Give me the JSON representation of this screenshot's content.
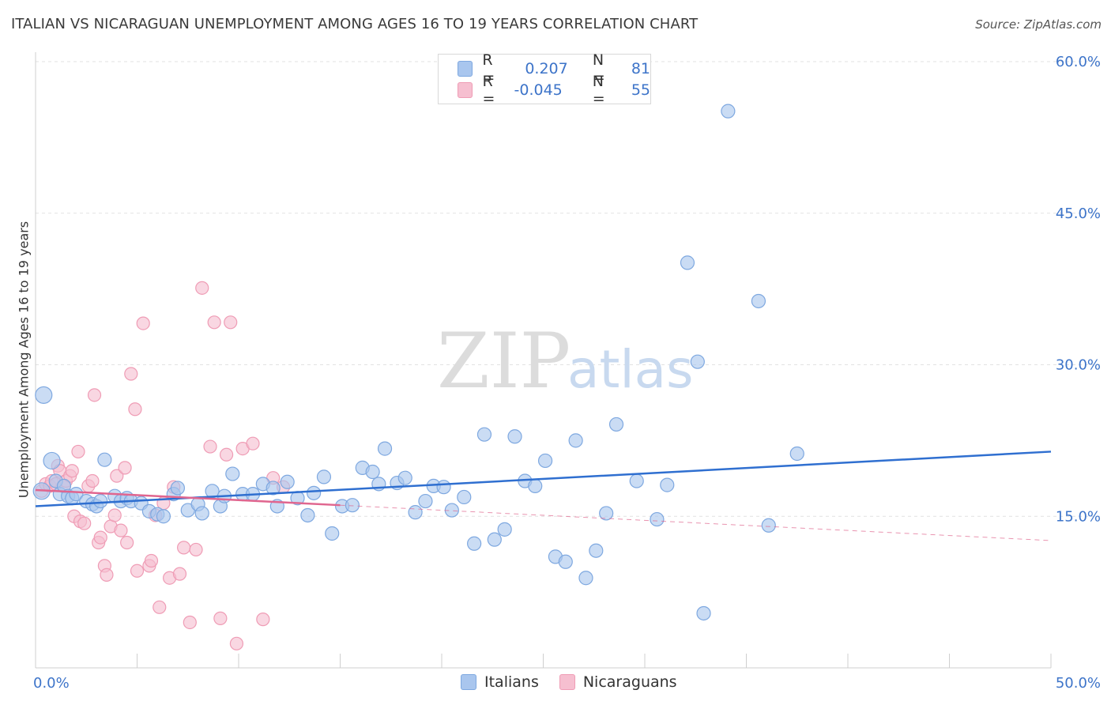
{
  "title": "ITALIAN VS NICARAGUAN UNEMPLOYMENT AMONG AGES 16 TO 19 YEARS CORRELATION CHART",
  "source": "Source: ZipAtlas.com",
  "watermark": {
    "part1": "ZIP",
    "part2": "atlas"
  },
  "legend_top": {
    "rows": [
      {
        "r_key": "R =",
        "r_value": "0.207",
        "n_key": "N =",
        "n_value": "81"
      },
      {
        "r_key": "R =",
        "r_value": "-0.045",
        "n_key": "N =",
        "n_value": "55"
      }
    ]
  },
  "legend_bottom": {
    "items": [
      "Italians",
      "Nicaraguans"
    ]
  },
  "colors": {
    "italians_fill": "#a9c6ee",
    "italians_stroke": "#7ea8e0",
    "italians_line": "#2f6fd0",
    "nicaraguans_fill": "#f6bfd0",
    "nicaraguans_stroke": "#ef9cb5",
    "nicaraguans_line": "#e0668f",
    "tick_label": "#3d74c9",
    "grid": "#e2e2e2"
  },
  "chart_data": {
    "type": "scatter",
    "title": "ITALIAN VS NICARAGUAN UNEMPLOYMENT AMONG AGES 16 TO 19 YEARS CORRELATION CHART",
    "xlabel": "",
    "ylabel": "Unemployment Among Ages 16 to 19 years",
    "xlim": [
      0,
      50
    ],
    "ylim": [
      0,
      60
    ],
    "x_tick_labels": [
      "0.0%",
      "50.0%"
    ],
    "y_ticks": [
      15,
      30,
      45,
      60
    ],
    "y_tick_labels": [
      "15.0%",
      "30.0%",
      "45.0%",
      "60.0%"
    ],
    "grid": true,
    "legend_position": "top-center",
    "series": [
      {
        "name": "Italians",
        "R": 0.207,
        "N": 81,
        "trend": {
          "x0": 0,
          "y0": 16.0,
          "x1": 50,
          "y1": 21.4,
          "dashed_from": null
        },
        "points": [
          [
            0.3,
            17.5
          ],
          [
            0.4,
            27.0
          ],
          [
            0.8,
            20.5
          ],
          [
            1.0,
            18.5
          ],
          [
            1.2,
            17.2
          ],
          [
            1.4,
            18.0
          ],
          [
            1.6,
            17.0
          ],
          [
            1.8,
            16.8
          ],
          [
            2.0,
            17.2
          ],
          [
            2.5,
            16.5
          ],
          [
            2.8,
            16.2
          ],
          [
            3.0,
            16.0
          ],
          [
            3.2,
            16.5
          ],
          [
            3.4,
            20.6
          ],
          [
            3.9,
            17.0
          ],
          [
            4.2,
            16.5
          ],
          [
            4.5,
            16.8
          ],
          [
            4.7,
            16.5
          ],
          [
            5.2,
            16.3
          ],
          [
            5.6,
            15.5
          ],
          [
            6.0,
            15.2
          ],
          [
            6.3,
            15.0
          ],
          [
            6.8,
            17.2
          ],
          [
            7.0,
            17.8
          ],
          [
            7.5,
            15.6
          ],
          [
            8.0,
            16.2
          ],
          [
            8.2,
            15.3
          ],
          [
            8.7,
            17.5
          ],
          [
            9.1,
            16.0
          ],
          [
            9.3,
            17.0
          ],
          [
            9.7,
            19.2
          ],
          [
            10.2,
            17.2
          ],
          [
            10.7,
            17.2
          ],
          [
            11.2,
            18.2
          ],
          [
            11.7,
            17.8
          ],
          [
            11.9,
            16.0
          ],
          [
            12.4,
            18.4
          ],
          [
            12.9,
            16.8
          ],
          [
            13.4,
            15.1
          ],
          [
            13.7,
            17.3
          ],
          [
            14.2,
            18.9
          ],
          [
            14.6,
            13.3
          ],
          [
            15.1,
            16.0
          ],
          [
            15.6,
            16.1
          ],
          [
            16.1,
            19.8
          ],
          [
            16.6,
            19.4
          ],
          [
            16.9,
            18.2
          ],
          [
            17.2,
            21.7
          ],
          [
            17.8,
            18.3
          ],
          [
            18.2,
            18.8
          ],
          [
            18.7,
            15.4
          ],
          [
            19.2,
            16.5
          ],
          [
            19.6,
            18.0
          ],
          [
            20.1,
            17.9
          ],
          [
            20.5,
            15.6
          ],
          [
            21.1,
            16.9
          ],
          [
            21.6,
            12.3
          ],
          [
            22.1,
            23.1
          ],
          [
            22.6,
            12.7
          ],
          [
            23.1,
            13.7
          ],
          [
            23.6,
            22.9
          ],
          [
            24.1,
            18.5
          ],
          [
            24.6,
            18.0
          ],
          [
            25.1,
            20.5
          ],
          [
            25.6,
            11.0
          ],
          [
            26.1,
            10.5
          ],
          [
            26.6,
            22.5
          ],
          [
            27.1,
            8.9
          ],
          [
            27.6,
            11.6
          ],
          [
            28.1,
            15.3
          ],
          [
            28.6,
            24.1
          ],
          [
            29.6,
            18.5
          ],
          [
            30.6,
            14.7
          ],
          [
            31.1,
            18.1
          ],
          [
            32.1,
            40.1
          ],
          [
            32.6,
            30.3
          ],
          [
            32.9,
            5.4
          ],
          [
            34.1,
            55.1
          ],
          [
            35.6,
            36.3
          ],
          [
            36.1,
            14.1
          ],
          [
            37.5,
            21.2
          ]
        ]
      },
      {
        "name": "Nicaraguans",
        "R": -0.045,
        "N": 55,
        "trend": {
          "x0": 0,
          "y0": 17.6,
          "x1": 50,
          "y1": 12.6,
          "dashed_from": 15
        },
        "points": [
          [
            0.3,
            17.5
          ],
          [
            0.5,
            18.2
          ],
          [
            0.7,
            18.0
          ],
          [
            0.8,
            18.5
          ],
          [
            1.0,
            18.2
          ],
          [
            1.1,
            20.0
          ],
          [
            1.2,
            19.5
          ],
          [
            1.4,
            18.0
          ],
          [
            1.5,
            18.5
          ],
          [
            1.7,
            19.0
          ],
          [
            1.8,
            19.5
          ],
          [
            1.9,
            15.0
          ],
          [
            2.1,
            21.4
          ],
          [
            2.2,
            14.5
          ],
          [
            2.4,
            14.3
          ],
          [
            2.6,
            18.0
          ],
          [
            2.8,
            18.5
          ],
          [
            2.9,
            27.0
          ],
          [
            3.1,
            12.4
          ],
          [
            3.2,
            12.9
          ],
          [
            3.4,
            10.1
          ],
          [
            3.5,
            9.2
          ],
          [
            3.7,
            14.0
          ],
          [
            3.9,
            15.1
          ],
          [
            4.0,
            19.0
          ],
          [
            4.2,
            13.6
          ],
          [
            4.4,
            19.8
          ],
          [
            4.5,
            12.4
          ],
          [
            4.7,
            29.1
          ],
          [
            4.9,
            25.6
          ],
          [
            5.0,
            9.6
          ],
          [
            5.3,
            34.1
          ],
          [
            5.6,
            10.1
          ],
          [
            5.7,
            10.6
          ],
          [
            5.9,
            15.1
          ],
          [
            6.1,
            6.0
          ],
          [
            6.3,
            16.3
          ],
          [
            6.6,
            8.9
          ],
          [
            6.8,
            17.9
          ],
          [
            7.1,
            9.3
          ],
          [
            7.3,
            11.9
          ],
          [
            7.6,
            4.5
          ],
          [
            7.9,
            11.7
          ],
          [
            8.2,
            37.6
          ],
          [
            8.6,
            21.9
          ],
          [
            8.8,
            34.2
          ],
          [
            9.1,
            4.9
          ],
          [
            9.4,
            21.1
          ],
          [
            9.6,
            34.2
          ],
          [
            9.9,
            2.4
          ],
          [
            10.2,
            21.7
          ],
          [
            10.7,
            22.2
          ],
          [
            11.2,
            4.8
          ],
          [
            11.7,
            18.8
          ],
          [
            12.2,
            17.9
          ]
        ]
      }
    ]
  }
}
